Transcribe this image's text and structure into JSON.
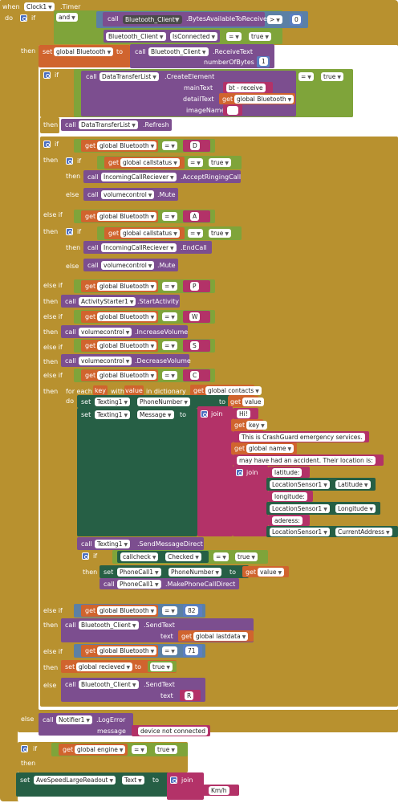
{
  "event": {
    "when": "when",
    "component": "Clock1",
    "event": ".Timer",
    "do": "do"
  },
  "keywords": {
    "if": "if",
    "then": "then",
    "else": "else",
    "else_if": "else if",
    "call": "call",
    "set": "set",
    "to": "to",
    "get": "get",
    "and": "and",
    "join": "join",
    "for_each": "for each",
    "with": "with",
    "in_dictionary": "in dictionary",
    "do": "do"
  },
  "ops": {
    "gt": ">",
    "eq": "=",
    "eq_text": "=",
    "eq_num": "="
  },
  "blocks": {
    "bt_client": "Bluetooth_Client",
    "bytes_available": ".BytesAvailableToReceive",
    "zero": "0",
    "is_connected": "IsConnected",
    "true": "true",
    "global_bluetooth": "global Bluetooth",
    "receive_text": ".ReceiveText",
    "number_of_bytes": "numberOfBytes",
    "one": "1",
    "data_transfer_list": "DataTransferList",
    "create_element": ".CreateElement",
    "main_text": "mainText",
    "bt_receive": "bt - receive",
    "detail_text": "detailText",
    "image_name": "imageName",
    "empty": "",
    "refresh": ".Refresh",
    "D": "D",
    "global_callstatus": "global callstatus",
    "incoming_call": "IncomingCallReciever",
    "accept_ringing": ".AcceptRingingCall",
    "volumecontrol": "volumecontrol",
    "mute": ".Mute",
    "A": "A",
    "end_call": ".EndCall",
    "P": "P",
    "activity_starter": "ActivityStarter1",
    "start_activity": ".StartActivity",
    "W": "W",
    "increase_volume": ".IncreaseVolume",
    "S": "S",
    "decrease_volume": ".DecreaseVolume",
    "C": "C",
    "key": "key",
    "value": "value",
    "global_contacts": "global contacts",
    "texting1": "Texting1",
    "phone_number": "PhoneNumber",
    "message": "Message",
    "hi": "Hi!",
    "crashguard": "This is CrashGuard emergency services.",
    "global_name": "global name",
    "accident": "may have had an accident. Their location is:",
    "latitude_label": "latitude:",
    "location_sensor": "LocationSensor1",
    "latitude": "Latitude",
    "longitude_label": "longitude:",
    "longitude": "Longitude",
    "address_label": "aderess:",
    "current_address": "CurrentAddress",
    "send_message_direct": ".SendMessageDirect",
    "callcheck": "callcheck",
    "checked": "Checked",
    "phonecall1": "PhoneCall1",
    "make_phone_call_direct": ".MakePhoneCallDirect",
    "n82": "82",
    "send_text": ".SendText",
    "text": "text",
    "global_lastdata": "global lastdata",
    "n71": "71",
    "global_recieved": "global recieved",
    "R": "R",
    "notifier": "Notifier1",
    "log_error": ".LogError",
    "message_lc": "message",
    "not_connected": "device not connected",
    "global_engine": "global engine",
    "ave_speed": "AveSpeedLargeReadout",
    "text_prop": "Text",
    "kmh": "Km/h"
  },
  "colors": {
    "control": "#b8912f",
    "logic": "#7fa43a",
    "math": "#5b7fc2",
    "component": "#7c4e8f",
    "component_green": "#265f45",
    "variable": "#d0642e",
    "text": "#b33268"
  }
}
